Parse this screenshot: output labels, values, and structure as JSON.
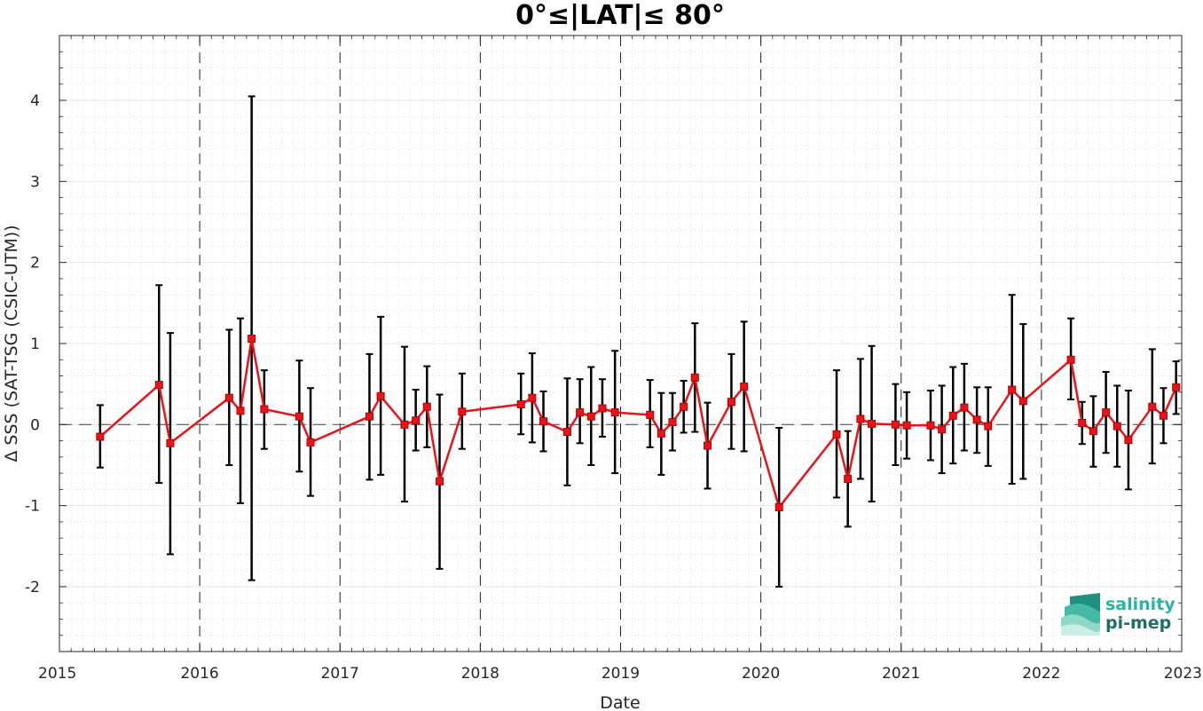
{
  "chart_data": {
    "type": "line",
    "title": "0°≤|LAT|≤ 80°",
    "xlabel": "Date",
    "ylabel": "Δ SSS (SAT-TSG (CSIC-UTM))",
    "xlim": [
      2015,
      2023
    ],
    "ylim": [
      -2.8,
      4.8
    ],
    "xticks": [
      "2015",
      "2016",
      "2017",
      "2018",
      "2019",
      "2020",
      "2021",
      "2022",
      "2023"
    ],
    "yticks": [
      "-2",
      "-1",
      "0",
      "1",
      "2",
      "3",
      "4"
    ],
    "grid": true,
    "year_separators": true,
    "zero_line": true,
    "series": [
      {
        "color": "#e8141a",
        "errorbar_color": "#000000",
        "points": [
          {
            "x": 2015.29,
            "y": -0.15,
            "lo": -0.53,
            "hi": 0.24
          },
          {
            "x": 2015.71,
            "y": 0.49,
            "lo": -0.72,
            "hi": 1.72
          },
          {
            "x": 2015.79,
            "y": -0.23,
            "lo": -1.6,
            "hi": 1.13
          },
          {
            "x": 2016.21,
            "y": 0.33,
            "lo": -0.5,
            "hi": 1.17
          },
          {
            "x": 2016.29,
            "y": 0.17,
            "lo": -0.97,
            "hi": 1.31
          },
          {
            "x": 2016.37,
            "y": 1.06,
            "lo": -1.92,
            "hi": 4.05
          },
          {
            "x": 2016.46,
            "y": 0.19,
            "lo": -0.3,
            "hi": 0.67
          },
          {
            "x": 2016.71,
            "y": 0.1,
            "lo": -0.58,
            "hi": 0.79
          },
          {
            "x": 2016.79,
            "y": -0.22,
            "lo": -0.88,
            "hi": 0.45
          },
          {
            "x": 2017.21,
            "y": 0.1,
            "lo": -0.68,
            "hi": 0.87
          },
          {
            "x": 2017.29,
            "y": 0.35,
            "lo": -0.62,
            "hi": 1.33
          },
          {
            "x": 2017.46,
            "y": 0.0,
            "lo": -0.95,
            "hi": 0.96
          },
          {
            "x": 2017.54,
            "y": 0.05,
            "lo": -0.32,
            "hi": 0.43
          },
          {
            "x": 2017.62,
            "y": 0.22,
            "lo": -0.28,
            "hi": 0.72
          },
          {
            "x": 2017.71,
            "y": -0.7,
            "lo": -1.78,
            "hi": 0.37
          },
          {
            "x": 2017.87,
            "y": 0.16,
            "lo": -0.3,
            "hi": 0.63
          },
          {
            "x": 2018.29,
            "y": 0.25,
            "lo": -0.12,
            "hi": 0.63
          },
          {
            "x": 2018.37,
            "y": 0.33,
            "lo": -0.22,
            "hi": 0.88
          },
          {
            "x": 2018.45,
            "y": 0.04,
            "lo": -0.33,
            "hi": 0.41
          },
          {
            "x": 2018.62,
            "y": -0.09,
            "lo": -0.75,
            "hi": 0.57
          },
          {
            "x": 2018.71,
            "y": 0.15,
            "lo": -0.23,
            "hi": 0.56
          },
          {
            "x": 2018.79,
            "y": 0.1,
            "lo": -0.5,
            "hi": 0.71
          },
          {
            "x": 2018.87,
            "y": 0.2,
            "lo": -0.15,
            "hi": 0.56
          },
          {
            "x": 2018.96,
            "y": 0.15,
            "lo": -0.6,
            "hi": 0.91
          },
          {
            "x": 2019.21,
            "y": 0.12,
            "lo": -0.28,
            "hi": 0.55
          },
          {
            "x": 2019.29,
            "y": -0.11,
            "lo": -0.62,
            "hi": 0.39
          },
          {
            "x": 2019.37,
            "y": 0.03,
            "lo": -0.32,
            "hi": 0.39
          },
          {
            "x": 2019.45,
            "y": 0.22,
            "lo": -0.1,
            "hi": 0.54
          },
          {
            "x": 2019.53,
            "y": 0.58,
            "lo": -0.09,
            "hi": 1.25
          },
          {
            "x": 2019.62,
            "y": -0.26,
            "lo": -0.79,
            "hi": 0.27
          },
          {
            "x": 2019.79,
            "y": 0.28,
            "lo": -0.3,
            "hi": 0.87
          },
          {
            "x": 2019.88,
            "y": 0.47,
            "lo": -0.33,
            "hi": 1.27
          },
          {
            "x": 2020.13,
            "y": -1.02,
            "lo": -2.0,
            "hi": -0.04
          },
          {
            "x": 2020.54,
            "y": -0.12,
            "lo": -0.9,
            "hi": 0.67
          },
          {
            "x": 2020.62,
            "y": -0.67,
            "lo": -1.26,
            "hi": -0.08
          },
          {
            "x": 2020.71,
            "y": 0.07,
            "lo": -0.67,
            "hi": 0.81
          },
          {
            "x": 2020.79,
            "y": 0.01,
            "lo": -0.95,
            "hi": 0.97
          },
          {
            "x": 2020.96,
            "y": 0.0,
            "lo": -0.5,
            "hi": 0.5
          },
          {
            "x": 2021.04,
            "y": -0.01,
            "lo": -0.42,
            "hi": 0.4
          },
          {
            "x": 2021.21,
            "y": -0.01,
            "lo": -0.44,
            "hi": 0.42
          },
          {
            "x": 2021.29,
            "y": -0.06,
            "lo": -0.6,
            "hi": 0.48
          },
          {
            "x": 2021.37,
            "y": 0.11,
            "lo": -0.48,
            "hi": 0.71
          },
          {
            "x": 2021.45,
            "y": 0.21,
            "lo": -0.32,
            "hi": 0.75
          },
          {
            "x": 2021.54,
            "y": 0.06,
            "lo": -0.35,
            "hi": 0.46
          },
          {
            "x": 2021.62,
            "y": -0.02,
            "lo": -0.51,
            "hi": 0.46
          },
          {
            "x": 2021.79,
            "y": 0.43,
            "lo": -0.73,
            "hi": 1.6
          },
          {
            "x": 2021.87,
            "y": 0.29,
            "lo": -0.67,
            "hi": 1.24
          },
          {
            "x": 2022.21,
            "y": 0.8,
            "lo": 0.31,
            "hi": 1.31
          },
          {
            "x": 2022.29,
            "y": 0.02,
            "lo": -0.24,
            "hi": 0.28
          },
          {
            "x": 2022.37,
            "y": -0.08,
            "lo": -0.52,
            "hi": 0.35
          },
          {
            "x": 2022.46,
            "y": 0.15,
            "lo": -0.35,
            "hi": 0.65
          },
          {
            "x": 2022.54,
            "y": -0.02,
            "lo": -0.52,
            "hi": 0.48
          },
          {
            "x": 2022.62,
            "y": -0.19,
            "lo": -0.8,
            "hi": 0.42
          },
          {
            "x": 2022.79,
            "y": 0.22,
            "lo": -0.48,
            "hi": 0.93
          },
          {
            "x": 2022.87,
            "y": 0.11,
            "lo": -0.23,
            "hi": 0.45
          },
          {
            "x": 2022.96,
            "y": 0.46,
            "lo": 0.13,
            "hi": 0.78
          }
        ]
      }
    ]
  },
  "logo": {
    "line1": "salinity",
    "line2": "pi-mep",
    "color1": "#2bb5a0",
    "color2": "#1e6f65"
  }
}
